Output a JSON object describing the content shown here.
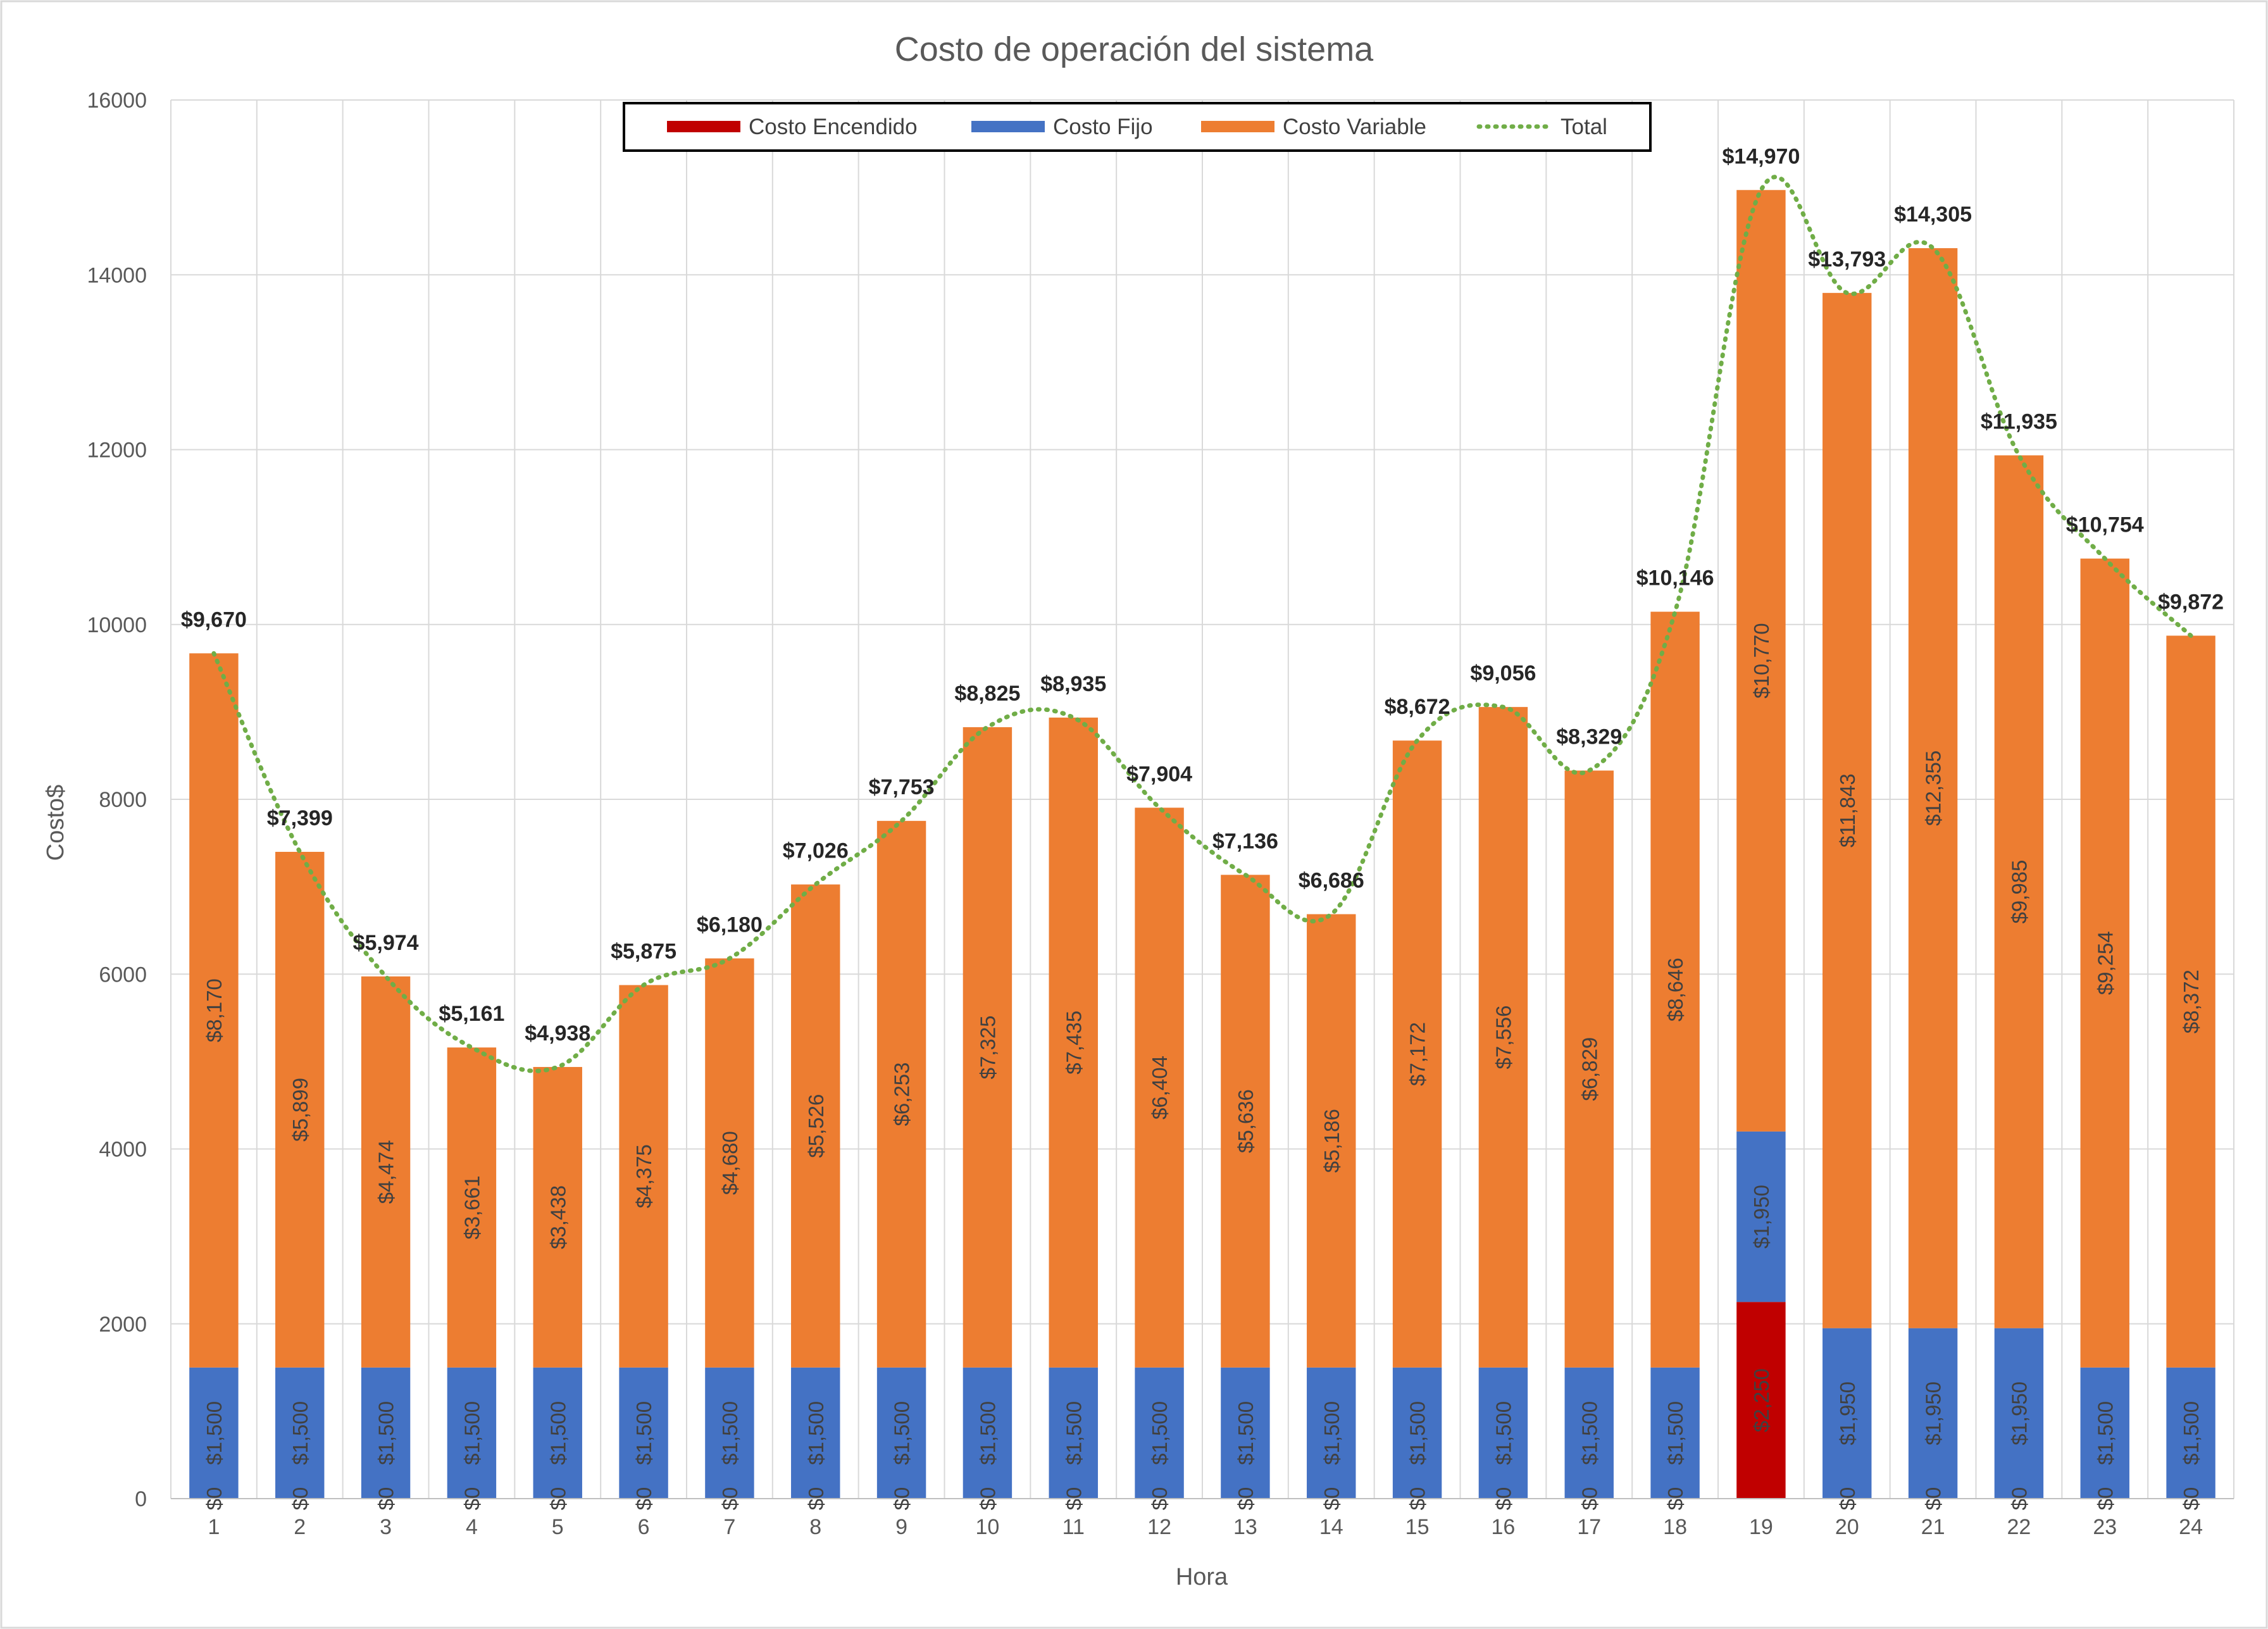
{
  "chart_data": {
    "type": "bar",
    "stacked": true,
    "title": "Costo de operación del sistema",
    "xlabel": "Hora",
    "ylabel": "Costo$",
    "ylim": [
      0,
      16000
    ],
    "yticks": [
      0,
      2000,
      4000,
      6000,
      8000,
      10000,
      12000,
      14000,
      16000
    ],
    "grid": true,
    "legend_position": "top",
    "categories": [
      "1",
      "2",
      "3",
      "4",
      "5",
      "6",
      "7",
      "8",
      "9",
      "10",
      "11",
      "12",
      "13",
      "14",
      "15",
      "16",
      "17",
      "18",
      "19",
      "20",
      "21",
      "22",
      "23",
      "24"
    ],
    "series": [
      {
        "name": "Costo Encendido",
        "color": "#C00000",
        "values": [
          0,
          0,
          0,
          0,
          0,
          0,
          0,
          0,
          0,
          0,
          0,
          0,
          0,
          0,
          0,
          0,
          0,
          0,
          2250,
          0,
          0,
          0,
          0,
          0
        ],
        "labels": [
          "$0",
          "$0",
          "$0",
          "$0",
          "$0",
          "$0",
          "$0",
          "$0",
          "$0",
          "$0",
          "$0",
          "$0",
          "$0",
          "$0",
          "$0",
          "$0",
          "$0",
          "$0",
          "$2,250",
          "$0",
          "$0",
          "$0",
          "$0",
          "$0"
        ]
      },
      {
        "name": "Costo Fijo",
        "color": "#4472C4",
        "values": [
          1500,
          1500,
          1500,
          1500,
          1500,
          1500,
          1500,
          1500,
          1500,
          1500,
          1500,
          1500,
          1500,
          1500,
          1500,
          1500,
          1500,
          1500,
          1950,
          1950,
          1950,
          1950,
          1500,
          1500
        ],
        "labels": [
          "$1,500",
          "$1,500",
          "$1,500",
          "$1,500",
          "$1,500",
          "$1,500",
          "$1,500",
          "$1,500",
          "$1,500",
          "$1,500",
          "$1,500",
          "$1,500",
          "$1,500",
          "$1,500",
          "$1,500",
          "$1,500",
          "$1,500",
          "$1,500",
          "$1,950",
          "$1,950",
          "$1,950",
          "$1,950",
          "$1,500",
          "$1,500"
        ]
      },
      {
        "name": "Costo Variable",
        "color": "#ED7D31",
        "values": [
          8170,
          5899,
          4474,
          3661,
          3438,
          4375,
          4680,
          5526,
          6253,
          7325,
          7435,
          6404,
          5636,
          5186,
          7172,
          7556,
          6829,
          8646,
          10770,
          11843,
          12355,
          9985,
          9254,
          8372
        ],
        "labels": [
          "$8,170",
          "$5,899",
          "$4,474",
          "$3,661",
          "$3,438",
          "$4,375",
          "$4,680",
          "$5,526",
          "$6,253",
          "$7,325",
          "$7,435",
          "$6,404",
          "$5,636",
          "$5,186",
          "$7,172",
          "$7,556",
          "$6,829",
          "$8,646",
          "$10,770",
          "$11,843",
          "$12,355",
          "$9,985",
          "$9,254",
          "$8,372"
        ]
      },
      {
        "name": "Total",
        "type": "line",
        "style": "dotted",
        "color": "#70AD47",
        "values": [
          9670,
          7399,
          5974,
          5161,
          4938,
          5875,
          6180,
          7026,
          7753,
          8825,
          8935,
          7904,
          7136,
          6686,
          8672,
          9056,
          8329,
          10146,
          14970,
          13793,
          14305,
          11935,
          10754,
          9872
        ],
        "labels": [
          "$9,670",
          "$7,399",
          "$5,974",
          "$5,161",
          "$4,938",
          "$5,875",
          "$6,180",
          "$7,026",
          "$7,753",
          "$8,825",
          "$8,935",
          "$7,904",
          "$7,136",
          "$6,686",
          "$8,672",
          "$9,056",
          "$8,329",
          "$10,146",
          "$14,970",
          "$13,793",
          "$14,305",
          "$11,935",
          "$10,754",
          "$9,872"
        ]
      }
    ]
  }
}
